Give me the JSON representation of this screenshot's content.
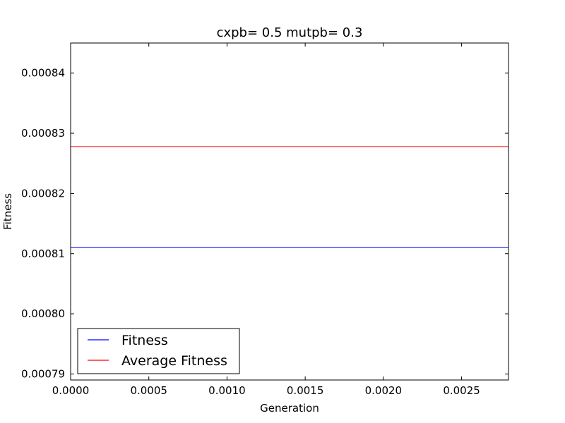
{
  "chart_data": {
    "type": "line",
    "title": "cxpb= 0.5 mutpb= 0.3",
    "xlabel": "Generation",
    "ylabel": "Fitness",
    "xlim": [
      0.0,
      0.0028
    ],
    "ylim": [
      0.000789,
      0.000845
    ],
    "xticks": [
      0.0,
      0.0005,
      0.001,
      0.0015,
      0.002,
      0.0025
    ],
    "xtick_labels": [
      "0.0000",
      "0.0005",
      "0.0010",
      "0.0015",
      "0.0020",
      "0.0025"
    ],
    "yticks": [
      0.00079,
      0.0008,
      0.00081,
      0.00082,
      0.00083,
      0.00084
    ],
    "ytick_labels": [
      "0.00079",
      "0.00080",
      "0.00081",
      "0.00082",
      "0.00083",
      "0.00084"
    ],
    "grid": false,
    "legend": {
      "placement": "lower-left"
    },
    "series": [
      {
        "name": "Fitness",
        "color": "#0000ff",
        "x": [
          0.0,
          0.0028
        ],
        "y": [
          0.000811,
          0.000811
        ]
      },
      {
        "name": "Average Fitness",
        "color": "#ff0000",
        "x": [
          0.0,
          0.0028
        ],
        "y": [
          0.0008278,
          0.0008278
        ]
      }
    ]
  }
}
